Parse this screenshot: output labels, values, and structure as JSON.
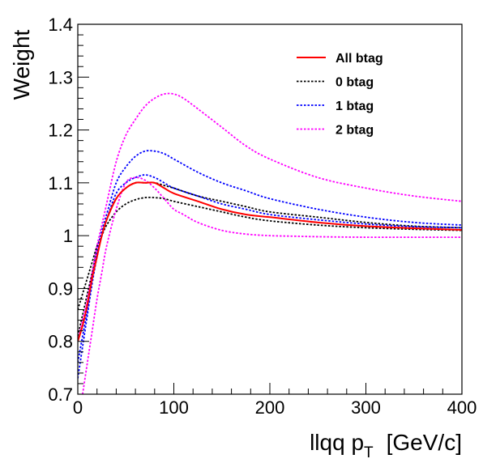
{
  "chart_data": {
    "type": "line",
    "title": "",
    "xlabel": "llqq p_T  [GeV/c]",
    "xlabel_main": "llqq p",
    "xlabel_sub": "T",
    "xlabel_unit": "[GeV/c]",
    "ylabel": "Weight",
    "xlim": [
      0,
      400
    ],
    "ylim": [
      0.7,
      1.4
    ],
    "xticks": [
      0,
      100,
      200,
      300,
      400
    ],
    "xtick_labels": [
      "0",
      "100",
      "200",
      "300",
      "400"
    ],
    "yticks": [
      0.7,
      0.8,
      0.9,
      1.0,
      1.1,
      1.2,
      1.3,
      1.4
    ],
    "ytick_labels": [
      "0.7",
      "0.8",
      "0.9",
      "1",
      "1.1",
      "1.2",
      "1.3",
      "1.4"
    ],
    "grid": false,
    "legend_position": "top-right",
    "series": [
      {
        "name": "All btag",
        "color": "#ff0000",
        "style": "solid",
        "x": [
          0,
          5,
          10,
          15,
          20,
          25,
          30,
          40,
          50,
          60,
          70,
          80,
          90,
          100,
          125,
          150,
          175,
          200,
          250,
          300,
          350,
          400
        ],
        "y": [
          0.8,
          0.83,
          0.87,
          0.92,
          0.96,
          1.0,
          1.03,
          1.07,
          1.09,
          1.1,
          1.1,
          1.1,
          1.09,
          1.08,
          1.065,
          1.05,
          1.04,
          1.035,
          1.025,
          1.018,
          1.014,
          1.011
        ]
      },
      {
        "name": "0 btag",
        "color": "#000000",
        "style": "dotted",
        "x": [
          0,
          5,
          10,
          15,
          20,
          25,
          30,
          40,
          50,
          60,
          70,
          80,
          90,
          100,
          125,
          150,
          175,
          200,
          250,
          300,
          350,
          400
        ],
        "y": [
          0.81,
          0.85,
          0.89,
          0.93,
          0.97,
          1.0,
          1.03,
          1.07,
          1.09,
          1.1,
          1.1,
          1.1,
          1.095,
          1.09,
          1.075,
          1.065,
          1.055,
          1.045,
          1.035,
          1.025,
          1.018,
          1.015
        ]
      },
      {
        "name": "0 btag",
        "color": "#000000",
        "style": "dotted",
        "x": [
          0,
          5,
          10,
          15,
          20,
          25,
          30,
          40,
          50,
          60,
          70,
          80,
          90,
          100,
          125,
          150,
          175,
          200,
          250,
          300,
          350,
          400
        ],
        "y": [
          0.86,
          0.89,
          0.92,
          0.95,
          0.98,
          1.0,
          1.02,
          1.045,
          1.06,
          1.068,
          1.072,
          1.072,
          1.07,
          1.065,
          1.055,
          1.045,
          1.035,
          1.028,
          1.02,
          1.015,
          1.012,
          1.01
        ]
      },
      {
        "name": "1 btag",
        "color": "#0000ff",
        "style": "dotted",
        "x": [
          0,
          5,
          10,
          15,
          20,
          25,
          30,
          40,
          50,
          60,
          70,
          80,
          90,
          100,
          125,
          150,
          175,
          200,
          250,
          300,
          350,
          400
        ],
        "y": [
          0.73,
          0.79,
          0.85,
          0.91,
          0.96,
          1.0,
          1.03,
          1.08,
          1.1,
          1.11,
          1.115,
          1.11,
          1.1,
          1.09,
          1.075,
          1.06,
          1.05,
          1.04,
          1.03,
          1.022,
          1.017,
          1.015
        ]
      },
      {
        "name": "1 btag",
        "color": "#0000ff",
        "style": "dotted",
        "x": [
          0,
          5,
          10,
          15,
          20,
          25,
          30,
          40,
          50,
          60,
          70,
          80,
          90,
          100,
          125,
          150,
          175,
          200,
          250,
          300,
          350,
          400
        ],
        "y": [
          0.76,
          0.81,
          0.86,
          0.92,
          0.97,
          1.01,
          1.04,
          1.1,
          1.13,
          1.15,
          1.16,
          1.16,
          1.155,
          1.145,
          1.12,
          1.1,
          1.085,
          1.07,
          1.05,
          1.035,
          1.025,
          1.02
        ]
      },
      {
        "name": "2 btag",
        "color": "#ff00ff",
        "style": "dotted",
        "x": [
          5,
          10,
          15,
          20,
          25,
          30,
          40,
          50,
          60,
          70,
          80,
          90,
          100,
          110,
          125,
          150,
          175,
          200,
          225,
          250,
          300,
          350,
          400
        ],
        "y": [
          0.7,
          0.76,
          0.82,
          0.88,
          0.93,
          0.98,
          1.05,
          1.1,
          1.11,
          1.105,
          1.09,
          1.07,
          1.05,
          1.04,
          1.025,
          1.01,
          1.003,
          1.0,
          0.999,
          0.998,
          0.997,
          0.997,
          0.997
        ]
      },
      {
        "name": "2 btag",
        "color": "#ff00ff",
        "style": "dotted",
        "x": [
          0,
          5,
          10,
          15,
          20,
          25,
          30,
          40,
          50,
          60,
          70,
          80,
          90,
          100,
          110,
          125,
          150,
          175,
          200,
          250,
          300,
          350,
          400
        ],
        "y": [
          0.8,
          0.84,
          0.88,
          0.93,
          0.98,
          1.02,
          1.06,
          1.14,
          1.19,
          1.22,
          1.245,
          1.26,
          1.268,
          1.268,
          1.26,
          1.24,
          1.205,
          1.17,
          1.145,
          1.11,
          1.09,
          1.075,
          1.065
        ]
      }
    ],
    "legend": [
      {
        "label": "All btag",
        "color": "#ff0000",
        "style": "solid"
      },
      {
        "label": "0 btag",
        "color": "#000000",
        "style": "dotted"
      },
      {
        "label": "1 btag",
        "color": "#0000ff",
        "style": "dotted"
      },
      {
        "label": "2 btag",
        "color": "#ff00ff",
        "style": "dotted"
      }
    ]
  }
}
